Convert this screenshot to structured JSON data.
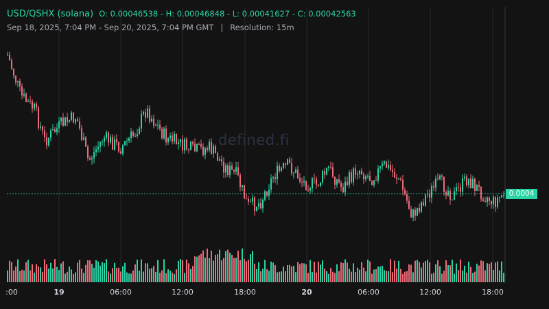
{
  "header": {
    "pair": "USD/QSHX (solana)",
    "ohlc": "O: 0.00046538 - H: 0.00046848 - L: 0.00041627 - C: 0.00042563",
    "range": "Sep 18, 2025, 7:04 PM - Sep 20, 2025, 7:04 PM GMT",
    "separator": "|",
    "resolution": "Resolution: 15m"
  },
  "watermark": "defined.fi",
  "price_tag": "0.0004",
  "colors": {
    "up": "#2bd4a6",
    "down": "#f06b7a",
    "grid": "#2a2a2a",
    "bg": "#131313"
  },
  "chart_data": {
    "type": "candlestick",
    "resolution": "15m",
    "x_tick_labels": [
      ":00",
      "19",
      "06:00",
      "12:00",
      "18:00",
      "20",
      "06:00",
      "12:00",
      "18:00"
    ],
    "current_price_label": "0.0004",
    "series": [
      {
        "name": "price",
        "type": "candlestick",
        "open": 0.00046538,
        "high": 0.00046848,
        "low": 0.00041627,
        "close": 0.00042563
      },
      {
        "name": "volume",
        "type": "bar"
      }
    ]
  }
}
